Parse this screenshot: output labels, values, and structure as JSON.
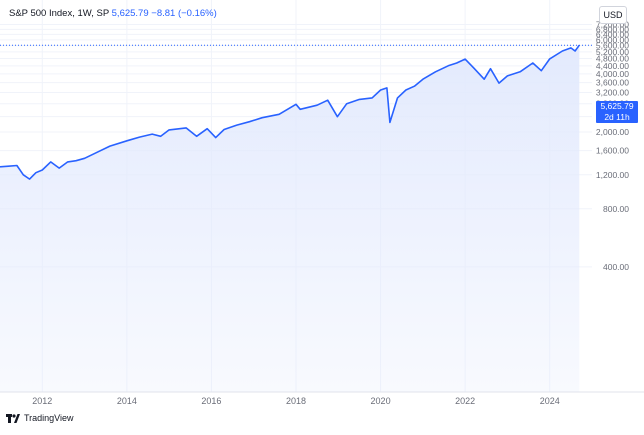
{
  "legend": {
    "symbol": "S&P 500 Index, 1W, SP",
    "last": "5,625.79",
    "change": "−8.81 (−0.16%)"
  },
  "currency_button": "USD",
  "price_tag": {
    "price": "5,625.79",
    "countdown": "2d 11h"
  },
  "footer": {
    "brand": "TradingView",
    "logo_icon": "tradingview-logo-icon"
  },
  "colors": {
    "line": "#2962ff",
    "area_top": "#e3eafd",
    "grid": "#f0f3fa",
    "axis_text": "#6a6d78"
  },
  "chart_data": {
    "type": "area",
    "title": "S&P 500 Index, 1W, SP",
    "xlabel": "",
    "ylabel": "",
    "x_ticks": [
      "2012",
      "2014",
      "2016",
      "2018",
      "2020",
      "2022",
      "2024"
    ],
    "y_ticks": [
      "7,200.00",
      "6,800.00",
      "6,400.00",
      "6,000.00",
      "5,600.00",
      "5,200.00",
      "4,800.00",
      "4,400.00",
      "4,000.00",
      "3,600.00",
      "3,200.00",
      "2,800.00",
      "2,400.00",
      "2,000.00",
      "1,600.00",
      "1,200.00",
      "800.00",
      "400.00"
    ],
    "ylim": [
      90,
      7600
    ],
    "y_scale": "log",
    "xlim": [
      2011.0,
      2025.0
    ],
    "grid": true,
    "last_price": 5625.79,
    "series": [
      {
        "values": [
          {
            "x": 2011.0,
            "y": 1320
          },
          {
            "x": 2011.2,
            "y": 1330
          },
          {
            "x": 2011.4,
            "y": 1340
          },
          {
            "x": 2011.55,
            "y": 1200
          },
          {
            "x": 2011.7,
            "y": 1140
          },
          {
            "x": 2011.85,
            "y": 1230
          },
          {
            "x": 2012.0,
            "y": 1270
          },
          {
            "x": 2012.2,
            "y": 1400
          },
          {
            "x": 2012.4,
            "y": 1300
          },
          {
            "x": 2012.6,
            "y": 1400
          },
          {
            "x": 2012.8,
            "y": 1420
          },
          {
            "x": 2013.0,
            "y": 1460
          },
          {
            "x": 2013.3,
            "y": 1570
          },
          {
            "x": 2013.6,
            "y": 1690
          },
          {
            "x": 2014.0,
            "y": 1800
          },
          {
            "x": 2014.3,
            "y": 1880
          },
          {
            "x": 2014.6,
            "y": 1950
          },
          {
            "x": 2014.8,
            "y": 1900
          },
          {
            "x": 2015.0,
            "y": 2050
          },
          {
            "x": 2015.4,
            "y": 2100
          },
          {
            "x": 2015.65,
            "y": 1900
          },
          {
            "x": 2015.9,
            "y": 2080
          },
          {
            "x": 2016.1,
            "y": 1870
          },
          {
            "x": 2016.3,
            "y": 2060
          },
          {
            "x": 2016.6,
            "y": 2170
          },
          {
            "x": 2016.9,
            "y": 2260
          },
          {
            "x": 2017.2,
            "y": 2370
          },
          {
            "x": 2017.6,
            "y": 2470
          },
          {
            "x": 2018.0,
            "y": 2780
          },
          {
            "x": 2018.1,
            "y": 2620
          },
          {
            "x": 2018.5,
            "y": 2750
          },
          {
            "x": 2018.75,
            "y": 2920
          },
          {
            "x": 2018.98,
            "y": 2400
          },
          {
            "x": 2019.2,
            "y": 2800
          },
          {
            "x": 2019.5,
            "y": 2950
          },
          {
            "x": 2019.8,
            "y": 3000
          },
          {
            "x": 2020.0,
            "y": 3300
          },
          {
            "x": 2020.15,
            "y": 3380
          },
          {
            "x": 2020.22,
            "y": 2240
          },
          {
            "x": 2020.4,
            "y": 3000
          },
          {
            "x": 2020.6,
            "y": 3300
          },
          {
            "x": 2020.8,
            "y": 3450
          },
          {
            "x": 2021.0,
            "y": 3750
          },
          {
            "x": 2021.3,
            "y": 4100
          },
          {
            "x": 2021.6,
            "y": 4400
          },
          {
            "x": 2021.8,
            "y": 4550
          },
          {
            "x": 2022.0,
            "y": 4770
          },
          {
            "x": 2022.2,
            "y": 4300
          },
          {
            "x": 2022.45,
            "y": 3750
          },
          {
            "x": 2022.6,
            "y": 4250
          },
          {
            "x": 2022.8,
            "y": 3580
          },
          {
            "x": 2023.0,
            "y": 3900
          },
          {
            "x": 2023.3,
            "y": 4100
          },
          {
            "x": 2023.6,
            "y": 4550
          },
          {
            "x": 2023.8,
            "y": 4150
          },
          {
            "x": 2024.0,
            "y": 4780
          },
          {
            "x": 2024.3,
            "y": 5250
          },
          {
            "x": 2024.5,
            "y": 5450
          },
          {
            "x": 2024.6,
            "y": 5250
          },
          {
            "x": 2024.7,
            "y": 5625.79
          }
        ]
      }
    ]
  }
}
